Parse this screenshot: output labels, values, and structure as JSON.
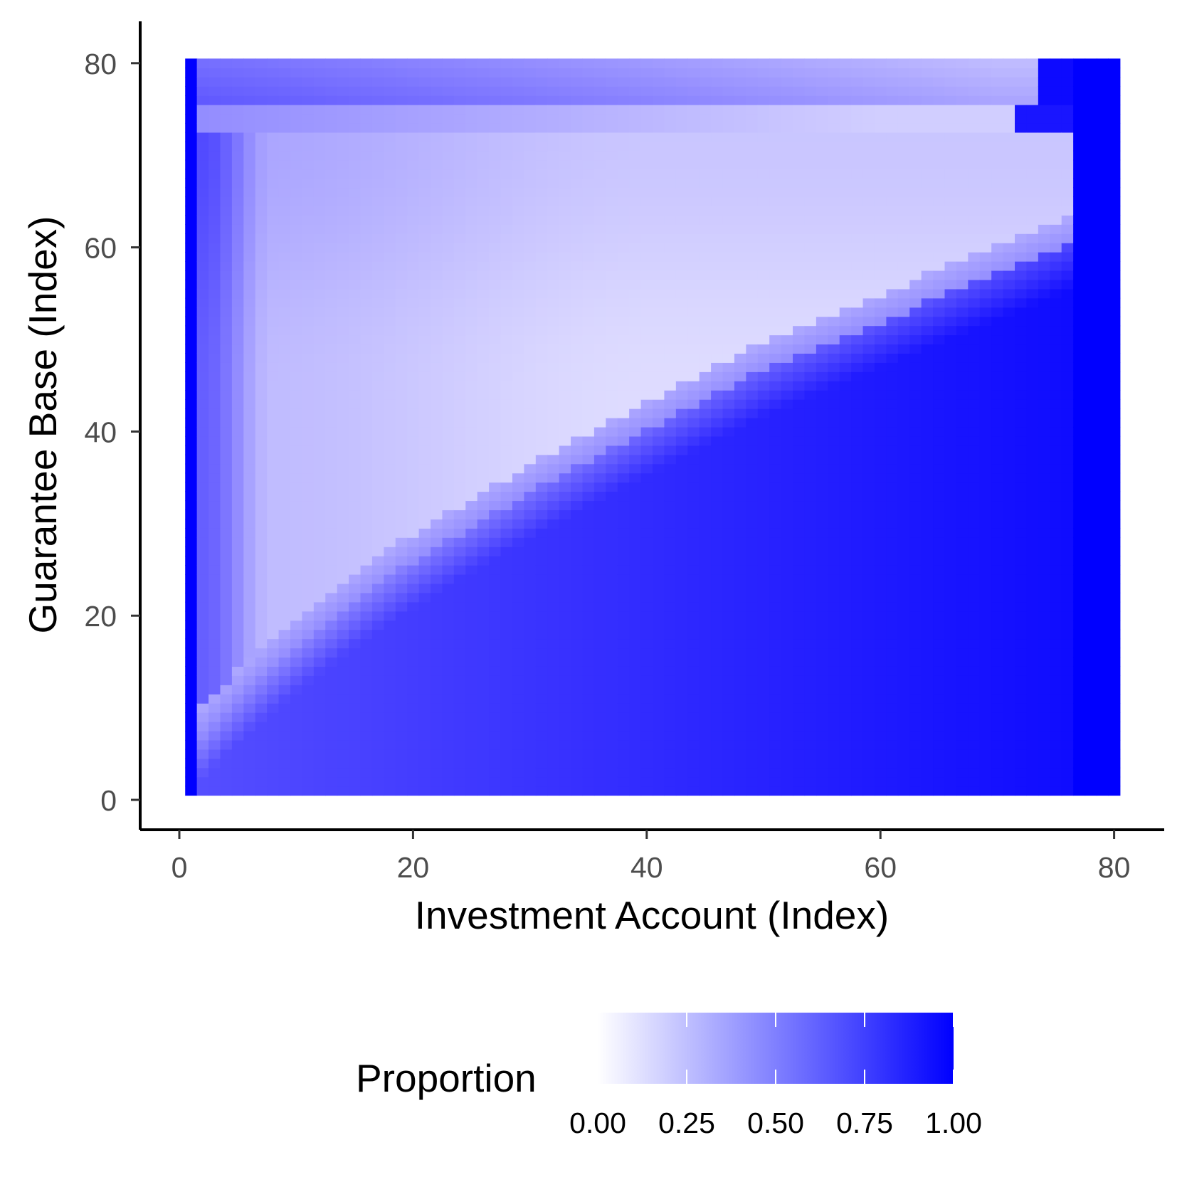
{
  "chart_data": {
    "type": "heatmap",
    "title": "",
    "xlabel": "Investment Account (Index)",
    "ylabel": "Guarantee Base (Index)",
    "x_range": [
      1,
      80
    ],
    "y_range": [
      1,
      80
    ],
    "xlim": [
      -3,
      84
    ],
    "ylim": [
      -3,
      84
    ],
    "x_ticks": [
      0,
      20,
      40,
      60,
      80
    ],
    "y_ticks": [
      0,
      20,
      40,
      60,
      80
    ],
    "x_tick_labels": [
      "0",
      "20",
      "40",
      "60",
      "80"
    ],
    "y_tick_labels": [
      "0",
      "20",
      "40",
      "60",
      "80"
    ],
    "grid": false,
    "legend": {
      "title": "Proportion",
      "position": "bottom",
      "low_color": "#ffffff",
      "high_color": "#0000ff",
      "breaks": [
        0,
        0.25,
        0.5,
        0.75,
        1
      ],
      "labels": [
        "0.00",
        "0.25",
        "0.50",
        "0.75",
        "1.00"
      ]
    },
    "regions_description": {
      "left_edge_column_value": 1.0,
      "right_column_value": 1.0,
      "lower_right_values": [
        0.72,
        0.78,
        0.82,
        0.86,
        0.9,
        0.95
      ],
      "upper_triangle_values": [
        0.12,
        0.18,
        0.25,
        0.32
      ],
      "boundary_band_values": [
        0.45,
        0.6,
        0.7
      ],
      "top_band_values": [
        0.3,
        0.5,
        0.65
      ]
    }
  }
}
